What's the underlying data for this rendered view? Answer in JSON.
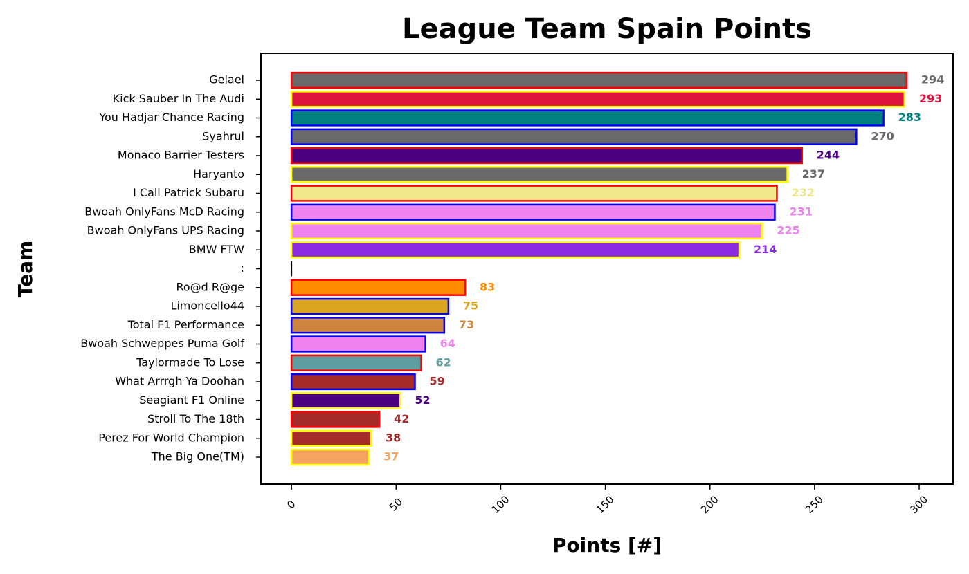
{
  "chart_data": {
    "type": "barh",
    "title": "League Team Spain Points",
    "xlabel": "Points [#]",
    "ylabel": "Team",
    "categories": [
      "Gelael",
      "Kick Sauber In The Audi",
      "You Hadjar Chance Racing",
      "Syahrul",
      "Monaco Barrier Testers",
      "Haryanto",
      "I Call Patrick Subaru",
      "Bwoah OnlyFans McD Racing",
      "Bwoah OnlyFans UPS Racing",
      "BMW FTW",
      ":",
      "Ro@d R@ge",
      "Limoncello44",
      "Total F1 Performance",
      "Bwoah Schweppes Puma Golf",
      "Taylormade To Lose",
      "What Arrrgh Ya Doohan",
      "Seagiant F1 Online",
      "Stroll To The 18th",
      "Perez For World Champion",
      "The Big One(TM)"
    ],
    "values": [
      294,
      293,
      283,
      270,
      244,
      237,
      232,
      231,
      225,
      214,
      null,
      83,
      75,
      73,
      64,
      62,
      59,
      52,
      42,
      38,
      37
    ],
    "colors": [
      "#696969",
      "#dc143c",
      "#008080",
      "#696969",
      "#4b0082",
      "#696969",
      "#f0e68c",
      "#ee82ee",
      "#ee82ee",
      "#8a2be2",
      "#000000",
      "#ff8c00",
      "#daa520",
      "#cd853f",
      "#ee82ee",
      "#5f9ea0",
      "#a52a2a",
      "#4b0082",
      "#a52a2a",
      "#a52a2a",
      "#f4a460"
    ],
    "edgecolors": [
      "#ff0000",
      "#ffff00",
      "#0000ff",
      "#0000ff",
      "#ff0000",
      "#ffff00",
      "#ff0000",
      "#0000ff",
      "#ffff00",
      "#ffff00",
      "#000000",
      "#ff0000",
      "#0000ff",
      "#0000ff",
      "#0000ff",
      "#ff0000",
      "#0000ff",
      "#ffff00",
      "#ff0000",
      "#ffff00",
      "#ffff00"
    ],
    "xlim": [
      -14.6,
      316.2
    ],
    "xticks": [
      0,
      50,
      100,
      150,
      200,
      250,
      300
    ],
    "grid": false
  }
}
